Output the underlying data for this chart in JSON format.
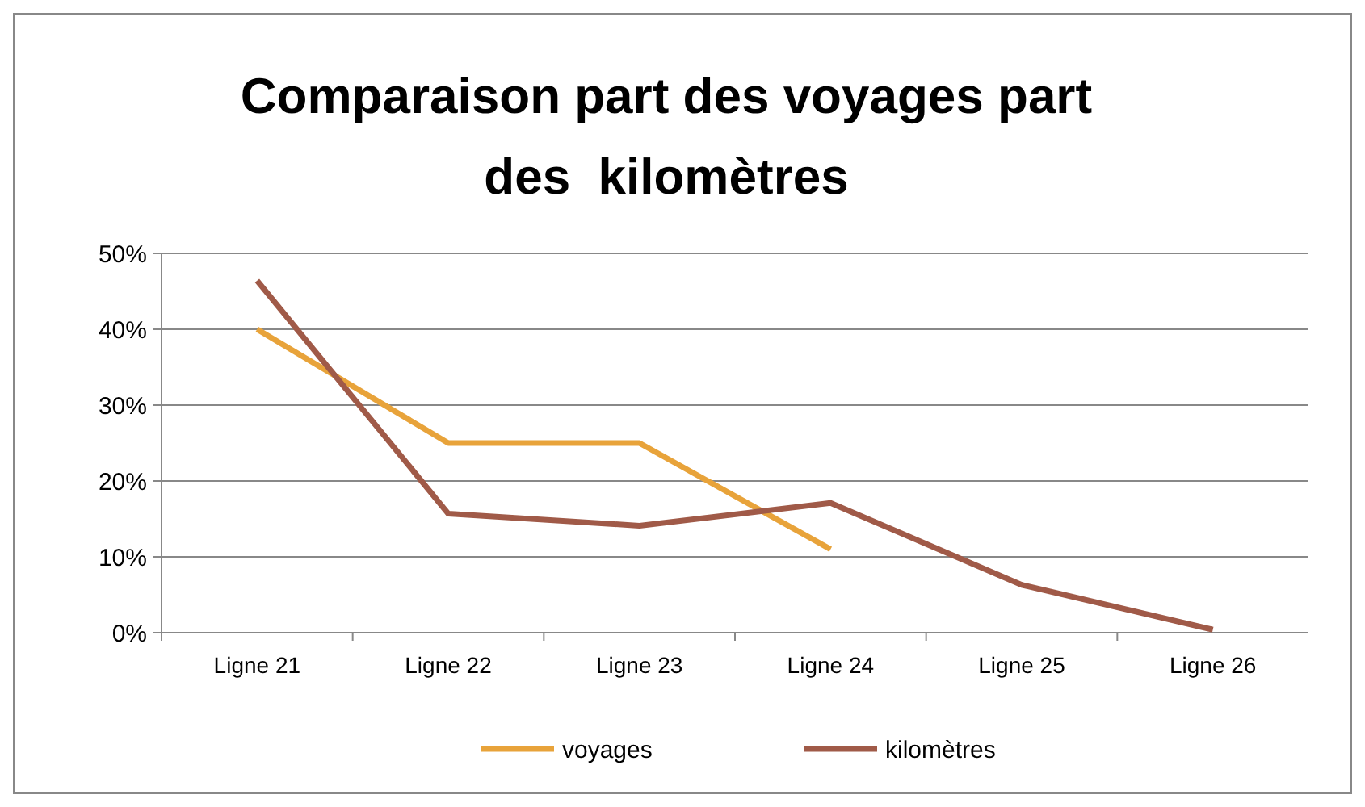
{
  "chart_data": {
    "type": "line",
    "title": "Comparaison part des voyages part des  kilomètres",
    "categories": [
      "Ligne 21",
      "Ligne 22",
      "Ligne 23",
      "Ligne 24",
      "Ligne 25",
      "Ligne 26"
    ],
    "series": [
      {
        "name": "voyages",
        "color": "#e8a33a",
        "values": [
          40,
          25,
          25,
          11,
          null,
          null
        ]
      },
      {
        "name": "kilomètres",
        "color": "#a05a48",
        "values": [
          46.4,
          15.7,
          14.1,
          17.1,
          6.3,
          0.4
        ]
      }
    ],
    "ylim": [
      0,
      50
    ],
    "yticks": [
      {
        "value": 0,
        "label": "0%"
      },
      {
        "value": 10,
        "label": "10%"
      },
      {
        "value": 20,
        "label": "20%"
      },
      {
        "value": 30,
        "label": "30%"
      },
      {
        "value": 40,
        "label": "40%"
      },
      {
        "value": 50,
        "label": "50%"
      }
    ],
    "grid": "y",
    "legend": "bottom",
    "marker": "none",
    "line_style": "solid"
  }
}
